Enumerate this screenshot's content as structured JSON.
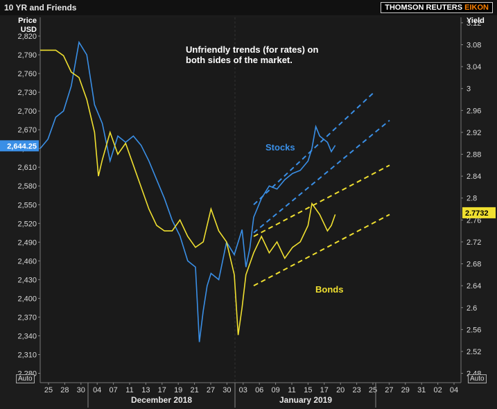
{
  "header": {
    "title": "10 YR and Friends",
    "brand": "THOMSON REUTERS",
    "brand_accent": "EIKON"
  },
  "chart_data": {
    "type": "line",
    "title": "Unfriendly trends (for rates) on both sides of the market.",
    "left_axis": {
      "label_line1": "Price",
      "label_line2": "USD",
      "range": [
        2265,
        2850
      ],
      "ticks": [
        "2,820",
        "2,790",
        "2,760",
        "2,730",
        "2,700",
        "2,670",
        "2,640",
        "2,610",
        "2,580",
        "2,550",
        "2,520",
        "2,490",
        "2,460",
        "2,430",
        "2,400",
        "2,370",
        "2,340",
        "2,310",
        "2,280"
      ],
      "current_value_label": "2,644.25",
      "current_value": 2644.25
    },
    "right_axis": {
      "label": "Yield",
      "range": [
        2.463,
        3.13
      ],
      "ticks": [
        "3.12",
        "3.08",
        "3.04",
        "3",
        "2.96",
        "2.92",
        "2.88",
        "2.84",
        "2.8",
        "2.76",
        "2.72",
        "2.68",
        "2.64",
        "2.6",
        "2.56",
        "2.52",
        "2.48"
      ],
      "current_value_label": "2.7732",
      "current_value": 2.7732
    },
    "x_axis": {
      "day_ticks": [
        "25",
        "28",
        "30",
        "04",
        "07",
        "11",
        "13",
        "17",
        "19",
        "21",
        "27",
        "30",
        "03",
        "06",
        "09",
        "11",
        "15",
        "17",
        "20",
        "23",
        "25",
        "27",
        "29",
        "31",
        "02",
        "04"
      ],
      "month_labels": [
        "December 2018",
        "January 2019"
      ]
    },
    "auto_label": "Auto",
    "series": [
      {
        "axis": "left",
        "color": "#3a8fe6",
        "points": [
          [
            0,
            2640
          ],
          [
            2,
            2655
          ],
          [
            4,
            2690
          ],
          [
            6,
            2700
          ],
          [
            8,
            2740
          ],
          [
            10,
            2810
          ],
          [
            12,
            2790
          ],
          [
            14,
            2710
          ],
          [
            16,
            2680
          ],
          [
            18,
            2620
          ],
          [
            20,
            2660
          ],
          [
            22,
            2650
          ],
          [
            24,
            2660
          ],
          [
            26,
            2645
          ],
          [
            28,
            2620
          ],
          [
            30,
            2590
          ],
          [
            32,
            2560
          ],
          [
            34,
            2525
          ],
          [
            36,
            2500
          ],
          [
            38,
            2460
          ],
          [
            40,
            2450
          ],
          [
            41,
            2330
          ],
          [
            42,
            2380
          ],
          [
            43,
            2420
          ],
          [
            44,
            2440
          ],
          [
            46,
            2430
          ],
          [
            48,
            2490
          ],
          [
            50,
            2470
          ],
          [
            52,
            2510
          ],
          [
            53,
            2450
          ],
          [
            54,
            2480
          ],
          [
            55,
            2530
          ],
          [
            57,
            2560
          ],
          [
            59,
            2580
          ],
          [
            61,
            2575
          ],
          [
            63,
            2590
          ],
          [
            65,
            2600
          ],
          [
            67,
            2605
          ],
          [
            69,
            2620
          ],
          [
            70,
            2640
          ],
          [
            71,
            2675
          ],
          [
            72,
            2660
          ],
          [
            74,
            2650
          ],
          [
            75,
            2635
          ],
          [
            76,
            2645
          ]
        ]
      },
      {
        "axis": "right",
        "color": "#f0e030",
        "points": [
          [
            0,
            3.07
          ],
          [
            2,
            3.07
          ],
          [
            4,
            3.07
          ],
          [
            6,
            3.06
          ],
          [
            8,
            3.03
          ],
          [
            10,
            3.02
          ],
          [
            12,
            2.98
          ],
          [
            14,
            2.92
          ],
          [
            15,
            2.84
          ],
          [
            16,
            2.87
          ],
          [
            18,
            2.92
          ],
          [
            20,
            2.88
          ],
          [
            22,
            2.9
          ],
          [
            24,
            2.86
          ],
          [
            26,
            2.82
          ],
          [
            28,
            2.78
          ],
          [
            30,
            2.75
          ],
          [
            32,
            2.74
          ],
          [
            34,
            2.74
          ],
          [
            36,
            2.76
          ],
          [
            38,
            2.73
          ],
          [
            40,
            2.71
          ],
          [
            42,
            2.72
          ],
          [
            44,
            2.78
          ],
          [
            46,
            2.74
          ],
          [
            48,
            2.72
          ],
          [
            50,
            2.66
          ],
          [
            51,
            2.55
          ],
          [
            52,
            2.6
          ],
          [
            53,
            2.66
          ],
          [
            55,
            2.7
          ],
          [
            57,
            2.73
          ],
          [
            59,
            2.7
          ],
          [
            61,
            2.72
          ],
          [
            63,
            2.69
          ],
          [
            65,
            2.71
          ],
          [
            67,
            2.72
          ],
          [
            69,
            2.75
          ],
          [
            70,
            2.79
          ],
          [
            72,
            2.77
          ],
          [
            74,
            2.74
          ],
          [
            75,
            2.75
          ],
          [
            76,
            2.77
          ]
        ]
      }
    ],
    "trendlines": [
      {
        "axis": "left",
        "color": "#3a8fe6",
        "from": [
          55,
          2550
        ],
        "to": [
          86,
          2730
        ]
      },
      {
        "axis": "left",
        "color": "#3a8fe6",
        "from": [
          55,
          2505
        ],
        "to": [
          90,
          2685
        ]
      },
      {
        "axis": "right",
        "color": "#f0e030",
        "from": [
          55,
          2.73
        ],
        "to": [
          90,
          2.86
        ]
      },
      {
        "axis": "right",
        "color": "#f0e030",
        "from": [
          55,
          2.64
        ],
        "to": [
          90,
          2.77
        ]
      }
    ],
    "annotations": [
      {
        "text": "Stocks",
        "color": "#3a8fe6"
      },
      {
        "text": "Bonds",
        "color": "#f0e030"
      }
    ]
  }
}
